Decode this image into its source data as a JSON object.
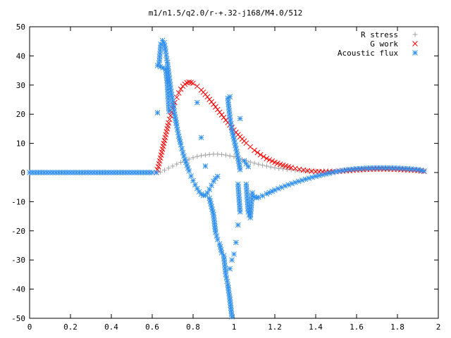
{
  "chart_data": {
    "type": "scatter",
    "title": "m1/n1.5/q2.0/r-+.32-j168/M4.0/512",
    "xlabel": "",
    "ylabel": "",
    "xlim": [
      0,
      2
    ],
    "ylim": [
      -50,
      50
    ],
    "xticks": [
      "0",
      "0.2",
      "0.4",
      "0.6",
      "0.8",
      "1",
      "1.2",
      "1.4",
      "1.6",
      "1.8",
      "2"
    ],
    "yticks": [
      "50",
      "40",
      "30",
      "20",
      "10",
      "0",
      "-10",
      "-20",
      "-30",
      "-40",
      "-50"
    ],
    "grid": false,
    "legend_position": "top-right",
    "series": [
      {
        "name": "R stress",
        "marker": "plus",
        "color": "#a0a0a0",
        "points": [
          [
            0.0,
            0
          ],
          [
            0.1,
            0
          ],
          [
            0.2,
            0
          ],
          [
            0.3,
            0
          ],
          [
            0.4,
            0
          ],
          [
            0.5,
            0
          ],
          [
            0.6,
            0
          ],
          [
            0.62,
            0
          ],
          [
            0.64,
            0.2
          ],
          [
            0.66,
            0.8
          ],
          [
            0.68,
            1.5
          ],
          [
            0.7,
            2.2
          ],
          [
            0.72,
            2.9
          ],
          [
            0.74,
            3.5
          ],
          [
            0.76,
            4.1
          ],
          [
            0.78,
            4.6
          ],
          [
            0.8,
            5.1
          ],
          [
            0.82,
            5.5
          ],
          [
            0.84,
            5.8
          ],
          [
            0.86,
            6.0
          ],
          [
            0.88,
            6.2
          ],
          [
            0.9,
            6.3
          ],
          [
            0.92,
            6.3
          ],
          [
            0.94,
            6.2
          ],
          [
            0.96,
            6.0
          ],
          [
            0.98,
            5.7
          ],
          [
            1.0,
            5.4
          ],
          [
            1.02,
            5.0
          ],
          [
            1.04,
            4.5
          ],
          [
            1.06,
            4.1
          ],
          [
            1.08,
            3.6
          ],
          [
            1.1,
            3.2
          ],
          [
            1.14,
            2.5
          ],
          [
            1.18,
            1.9
          ],
          [
            1.22,
            1.4
          ],
          [
            1.26,
            1.1
          ],
          [
            1.3,
            0.8
          ],
          [
            1.34,
            0.6
          ],
          [
            1.38,
            0.5
          ],
          [
            1.42,
            0.5
          ],
          [
            1.46,
            0.6
          ],
          [
            1.5,
            0.7
          ],
          [
            1.55,
            0.9
          ],
          [
            1.6,
            1.1
          ],
          [
            1.65,
            1.2
          ],
          [
            1.7,
            1.3
          ],
          [
            1.75,
            1.3
          ],
          [
            1.8,
            1.2
          ],
          [
            1.85,
            1.1
          ],
          [
            1.9,
            0.9
          ],
          [
            1.93,
            0.6
          ]
        ]
      },
      {
        "name": "G work",
        "marker": "cross",
        "color": "#ff0000",
        "points": [
          [
            0.62,
            0
          ],
          [
            0.63,
            2
          ],
          [
            0.64,
            5
          ],
          [
            0.65,
            8
          ],
          [
            0.66,
            11
          ],
          [
            0.67,
            14
          ],
          [
            0.68,
            17
          ],
          [
            0.69,
            19.5
          ],
          [
            0.7,
            22
          ],
          [
            0.71,
            24
          ],
          [
            0.72,
            25.8
          ],
          [
            0.73,
            27.3
          ],
          [
            0.74,
            28.6
          ],
          [
            0.75,
            29.6
          ],
          [
            0.76,
            30.3
          ],
          [
            0.77,
            30.8
          ],
          [
            0.78,
            31
          ],
          [
            0.79,
            30.9
          ],
          [
            0.8,
            30.6
          ],
          [
            0.82,
            29.6
          ],
          [
            0.84,
            28.3
          ],
          [
            0.86,
            26.8
          ],
          [
            0.88,
            25.1
          ],
          [
            0.9,
            23.4
          ],
          [
            0.92,
            21.6
          ],
          [
            0.94,
            19.8
          ],
          [
            0.96,
            18
          ],
          [
            0.98,
            16.3
          ],
          [
            1.0,
            14.6
          ],
          [
            1.02,
            13
          ],
          [
            1.04,
            11.5
          ],
          [
            1.06,
            10.1
          ],
          [
            1.08,
            8.8
          ],
          [
            1.1,
            7.6
          ],
          [
            1.13,
            6.1
          ],
          [
            1.16,
            4.8
          ],
          [
            1.2,
            3.5
          ],
          [
            1.24,
            2.5
          ],
          [
            1.28,
            1.7
          ],
          [
            1.32,
            1.1
          ],
          [
            1.36,
            0.6
          ],
          [
            1.4,
            0.3
          ],
          [
            1.45,
            0.2
          ],
          [
            1.5,
            0.3
          ],
          [
            1.55,
            0.6
          ],
          [
            1.6,
            0.9
          ],
          [
            1.65,
            1.1
          ],
          [
            1.7,
            1.2
          ],
          [
            1.75,
            1.2
          ],
          [
            1.8,
            1.1
          ],
          [
            1.85,
            0.9
          ],
          [
            1.9,
            0.7
          ],
          [
            1.93,
            0.4
          ]
        ]
      },
      {
        "name": "Acoustic flux",
        "marker": "star",
        "color": "#2f8fef",
        "points": [
          [
            0.0,
            0
          ],
          [
            0.1,
            0
          ],
          [
            0.2,
            0
          ],
          [
            0.3,
            0
          ],
          [
            0.4,
            0
          ],
          [
            0.5,
            0
          ],
          [
            0.6,
            0
          ],
          [
            0.62,
            0
          ],
          [
            0.626,
            20.5
          ],
          [
            0.634,
            37.5
          ],
          [
            0.642,
            44
          ],
          [
            0.65,
            45.3
          ],
          [
            0.658,
            44.5
          ],
          [
            0.666,
            41.5
          ],
          [
            0.674,
            37.8
          ],
          [
            0.682,
            33.5
          ],
          [
            0.69,
            29
          ],
          [
            0.7,
            24.5
          ],
          [
            0.71,
            20
          ],
          [
            0.72,
            16
          ],
          [
            0.73,
            12.5
          ],
          [
            0.74,
            9.5
          ],
          [
            0.75,
            6.8
          ],
          [
            0.76,
            4.5
          ],
          [
            0.77,
            2.5
          ],
          [
            0.78,
            0.5
          ],
          [
            0.79,
            -1.2
          ],
          [
            0.8,
            -2.8
          ],
          [
            0.81,
            -4.2
          ],
          [
            0.82,
            -5.5
          ],
          [
            0.83,
            -6.6
          ],
          [
            0.84,
            -7.4
          ],
          [
            0.85,
            -7.9
          ],
          [
            0.86,
            -7.8
          ],
          [
            0.87,
            -7
          ],
          [
            0.88,
            -5.8
          ],
          [
            0.89,
            -4.4
          ],
          [
            0.9,
            -3
          ],
          [
            0.91,
            -2
          ],
          [
            0.92,
            -1.3
          ],
          [
            0.626,
            36.7
          ],
          [
            0.666,
            35.5
          ],
          [
            0.674,
            30.5
          ],
          [
            0.682,
            21
          ],
          [
            0.82,
            24
          ],
          [
            0.84,
            12
          ],
          [
            0.86,
            2.2
          ],
          [
            0.88,
            -8.8
          ],
          [
            0.9,
            -14.5
          ],
          [
            0.91,
            -20.5
          ],
          [
            0.92,
            -23
          ],
          [
            0.93,
            -24.5
          ],
          [
            0.94,
            -27.5
          ],
          [
            0.95,
            -28.5
          ],
          [
            0.96,
            -35
          ],
          [
            0.97,
            -38.5
          ],
          [
            0.98,
            -43.5
          ],
          [
            0.99,
            -49.5
          ],
          [
            0.98,
            26
          ],
          [
            0.97,
            25.5
          ],
          [
            0.98,
            19
          ],
          [
            0.99,
            14.5
          ],
          [
            1.0,
            11.5
          ],
          [
            1.02,
            5
          ],
          [
            1.03,
            1
          ],
          [
            1.02,
            -4
          ],
          [
            1.03,
            -13.5
          ],
          [
            1.02,
            -18
          ],
          [
            1.01,
            -24
          ],
          [
            1.0,
            -28
          ],
          [
            0.99,
            -30
          ],
          [
            0.98,
            -33
          ],
          [
            1.03,
            18.5
          ],
          [
            1.05,
            4
          ],
          [
            1.07,
            2
          ],
          [
            1.06,
            -4
          ],
          [
            1.07,
            -13.5
          ],
          [
            1.08,
            -15.5
          ],
          [
            1.09,
            -7
          ],
          [
            1.1,
            -8.3
          ],
          [
            1.11,
            -8.7
          ],
          [
            1.12,
            -8.5
          ],
          [
            1.14,
            -8
          ],
          [
            1.16,
            -7.3
          ],
          [
            1.2,
            -6
          ],
          [
            1.25,
            -4.6
          ],
          [
            1.3,
            -3.4
          ],
          [
            1.35,
            -2.3
          ],
          [
            1.4,
            -1.3
          ],
          [
            1.45,
            -0.5
          ],
          [
            1.5,
            0.3
          ],
          [
            1.55,
            0.9
          ],
          [
            1.6,
            1.3
          ],
          [
            1.65,
            1.5
          ],
          [
            1.7,
            1.6
          ],
          [
            1.75,
            1.6
          ],
          [
            1.8,
            1.5
          ],
          [
            1.85,
            1.3
          ],
          [
            1.9,
            1
          ],
          [
            1.93,
            0.5
          ]
        ]
      }
    ]
  }
}
